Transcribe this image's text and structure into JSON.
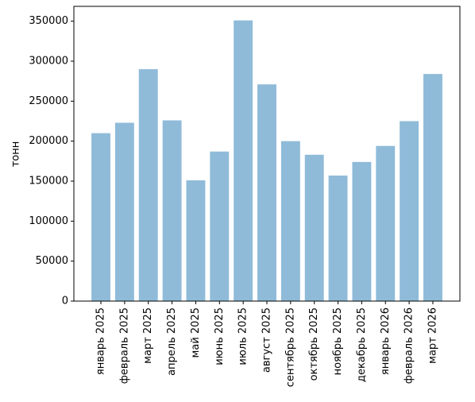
{
  "chart_data": {
    "type": "bar",
    "ylabel": "тонн",
    "categories": [
      "январь 2025",
      "февраль 2025",
      "март 2025",
      "апрель 2025",
      "май 2025",
      "июнь 2025",
      "июль 2025",
      "август 2025",
      "сентябрь 2025",
      "октябрь 2025",
      "ноябрь 2025",
      "декабрь 2025",
      "январь 2026",
      "февраль 2026",
      "март 2026"
    ],
    "values": [
      210000,
      223000,
      290000,
      226000,
      151000,
      187000,
      351000,
      271000,
      200000,
      183000,
      157000,
      174000,
      194000,
      225000,
      284000
    ],
    "color": "#8fbbd9",
    "ylim": [
      0,
      368550
    ],
    "yticks": [
      0,
      50000,
      100000,
      150000,
      200000,
      250000,
      300000,
      350000
    ],
    "grid": false
  }
}
